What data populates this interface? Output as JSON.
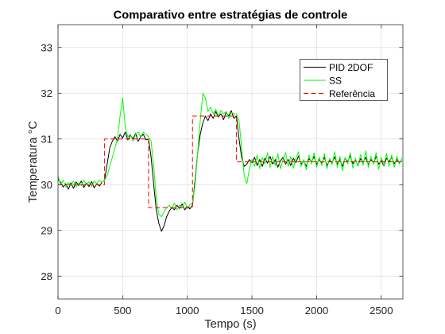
{
  "chart_data": {
    "type": "line",
    "title": "Comparativo entre estratégias de controle",
    "xlabel": "Tempo (s)",
    "ylabel": "Temperatura °C",
    "xlim": [
      0,
      2667
    ],
    "ylim": [
      27.5,
      33.5
    ],
    "x_ticks": [
      0,
      500,
      1000,
      1500,
      2000,
      2500
    ],
    "y_ticks": [
      28,
      29,
      30,
      31,
      32,
      33
    ],
    "grid": true,
    "legend_position": "top-right",
    "x": [
      0,
      20,
      40,
      60,
      80,
      100,
      120,
      140,
      160,
      180,
      200,
      220,
      240,
      260,
      280,
      300,
      320,
      340,
      360,
      380,
      400,
      420,
      440,
      460,
      480,
      500,
      520,
      540,
      560,
      580,
      600,
      620,
      640,
      660,
      680,
      700,
      720,
      740,
      760,
      780,
      800,
      820,
      840,
      860,
      880,
      900,
      920,
      940,
      960,
      980,
      1000,
      1020,
      1040,
      1060,
      1080,
      1100,
      1120,
      1140,
      1160,
      1180,
      1200,
      1220,
      1240,
      1260,
      1280,
      1300,
      1320,
      1340,
      1360,
      1380,
      1400,
      1420,
      1440,
      1460,
      1480,
      1500,
      1520,
      1540,
      1560,
      1580,
      1600,
      1620,
      1640,
      1660,
      1680,
      1700,
      1720,
      1740,
      1760,
      1780,
      1800,
      1820,
      1840,
      1860,
      1880,
      1900,
      1920,
      1940,
      1960,
      1980,
      2000,
      2020,
      2040,
      2060,
      2080,
      2100,
      2120,
      2140,
      2160,
      2180,
      2200,
      2220,
      2240,
      2260,
      2280,
      2300,
      2320,
      2340,
      2360,
      2380,
      2400,
      2420,
      2440,
      2460,
      2480,
      2500,
      2520,
      2540,
      2560,
      2580,
      2600,
      2620,
      2640,
      2660
    ],
    "series": [
      {
        "name": "PID 2DOF",
        "color": "#000000",
        "line_style": "solid",
        "values": [
          30.12,
          30.05,
          29.95,
          30.02,
          29.9,
          30.04,
          29.92,
          30.06,
          29.98,
          30.08,
          29.94,
          30.03,
          29.96,
          30.07,
          29.93,
          30.02,
          29.97,
          30.05,
          30.1,
          30.45,
          30.8,
          30.95,
          31.05,
          30.95,
          31.1,
          31.02,
          31.15,
          30.98,
          31.08,
          31.0,
          31.12,
          30.95,
          31.05,
          31.1,
          30.98,
          31.0,
          30.6,
          30.0,
          29.45,
          29.15,
          28.98,
          29.1,
          29.3,
          29.42,
          29.5,
          29.45,
          29.55,
          29.48,
          29.58,
          29.45,
          29.52,
          29.47,
          29.55,
          30.1,
          30.7,
          31.1,
          31.35,
          31.5,
          31.4,
          31.55,
          31.45,
          31.6,
          31.48,
          31.55,
          31.42,
          31.58,
          31.5,
          31.62,
          31.45,
          31.5,
          31.0,
          30.6,
          30.4,
          30.45,
          30.55,
          30.48,
          30.6,
          30.42,
          30.55,
          30.4,
          30.58,
          30.47,
          30.62,
          30.45,
          30.55,
          30.38,
          30.52,
          30.6,
          30.45,
          30.55,
          30.42,
          30.58,
          30.48,
          30.63,
          30.45,
          30.52,
          30.4,
          30.57,
          30.5,
          30.62,
          30.44,
          30.55,
          30.47,
          30.6,
          30.42,
          30.53,
          30.48,
          30.61,
          30.45,
          30.55,
          30.4,
          30.58,
          30.5,
          30.63,
          30.46,
          30.54,
          30.42,
          30.57,
          30.49,
          30.6,
          30.44,
          30.55,
          30.47,
          30.62,
          30.45,
          30.53,
          30.41,
          30.58,
          30.5,
          30.6,
          30.46,
          30.55,
          30.48,
          30.52
        ]
      },
      {
        "name": "SS",
        "color": "#00ff00",
        "line_style": "solid",
        "values": [
          30.2,
          30.0,
          30.1,
          29.95,
          30.05,
          29.98,
          30.08,
          29.95,
          30.04,
          29.98,
          30.1,
          30.0,
          30.06,
          29.96,
          30.08,
          30.02,
          30.1,
          30.05,
          30.1,
          30.2,
          30.4,
          30.6,
          30.8,
          31.0,
          31.5,
          31.9,
          31.25,
          31.05,
          31.1,
          30.95,
          31.1,
          31.15,
          31.05,
          31.15,
          31.1,
          31.05,
          30.95,
          30.4,
          29.7,
          29.35,
          29.3,
          29.4,
          29.5,
          29.55,
          29.48,
          29.6,
          29.45,
          29.55,
          29.5,
          29.62,
          29.48,
          29.56,
          29.6,
          30.0,
          30.7,
          31.4,
          32.0,
          31.9,
          31.6,
          31.7,
          31.55,
          31.65,
          31.5,
          31.62,
          31.55,
          31.6,
          31.45,
          31.58,
          31.55,
          31.55,
          31.4,
          30.8,
          30.2,
          30.02,
          30.35,
          30.55,
          30.4,
          30.65,
          30.35,
          30.6,
          30.45,
          30.7,
          30.38,
          30.62,
          30.42,
          30.68,
          30.35,
          30.55,
          30.7,
          30.4,
          30.62,
          30.36,
          30.58,
          30.72,
          30.4,
          30.55,
          30.33,
          30.65,
          30.45,
          30.7,
          30.38,
          30.6,
          30.42,
          30.68,
          30.35,
          30.58,
          30.44,
          30.72,
          30.38,
          30.62,
          30.3,
          30.6,
          30.45,
          30.7,
          30.36,
          30.58,
          30.4,
          30.66,
          30.42,
          30.74,
          30.38,
          30.62,
          30.45,
          30.7,
          30.34,
          30.6,
          30.42,
          30.68,
          30.4,
          30.65,
          30.38,
          30.62,
          30.45,
          30.58
        ]
      },
      {
        "name": "Referência",
        "color": "#ff0000",
        "line_style": "dashed",
        "x": [
          0,
          360,
          360,
          700,
          700,
          1040,
          1040,
          1380,
          1380,
          2667
        ],
        "values": [
          30,
          30,
          31,
          31,
          29.5,
          29.5,
          31.5,
          31.5,
          30.5,
          30.5
        ]
      }
    ]
  }
}
